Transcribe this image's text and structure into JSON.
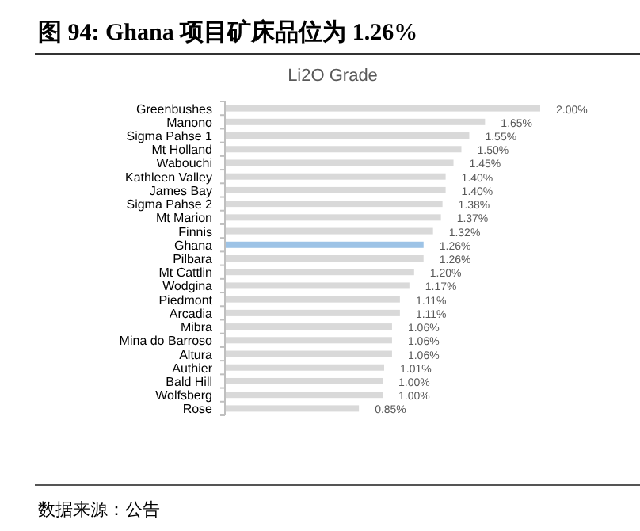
{
  "chart_data": {
    "type": "bar",
    "orientation": "horizontal",
    "title": "图 94: Ghana 项目矿床品位为 1.26%",
    "subtitle": "Li2O Grade",
    "categories": [
      "Greenbushes",
      "Manono",
      "Sigma Pahse 1",
      "Mt Holland",
      "Wabouchi",
      "Kathleen Valley",
      "James Bay",
      "Sigma Pahse 2",
      "Mt Marion",
      "Finnis",
      "Ghana",
      "Pilbara",
      "Mt Cattlin",
      "Wodgina",
      "Piedmont",
      "Arcadia",
      "Mibra",
      "Mina do Barroso",
      "Altura",
      "Authier",
      "Bald Hill",
      "Wolfsberg",
      "Rose"
    ],
    "values": [
      2.0,
      1.65,
      1.55,
      1.5,
      1.45,
      1.4,
      1.4,
      1.38,
      1.37,
      1.32,
      1.26,
      1.26,
      1.2,
      1.17,
      1.11,
      1.11,
      1.06,
      1.06,
      1.06,
      1.01,
      1.0,
      1.0,
      0.85
    ],
    "value_labels": [
      "2.00%",
      "1.65%",
      "1.55%",
      "1.50%",
      "1.45%",
      "1.40%",
      "1.40%",
      "1.38%",
      "1.37%",
      "1.32%",
      "1.26%",
      "1.26%",
      "1.20%",
      "1.17%",
      "1.11%",
      "1.11%",
      "1.06%",
      "1.06%",
      "1.06%",
      "1.01%",
      "1.00%",
      "1.00%",
      "0.85%"
    ],
    "colors": [
      "#d9d9d9",
      "#d9d9d9",
      "#d9d9d9",
      "#d9d9d9",
      "#d9d9d9",
      "#d9d9d9",
      "#d9d9d9",
      "#d9d9d9",
      "#d9d9d9",
      "#d9d9d9",
      "#9dc3e6",
      "#d9d9d9",
      "#d9d9d9",
      "#d9d9d9",
      "#d9d9d9",
      "#d9d9d9",
      "#d9d9d9",
      "#d9d9d9",
      "#d9d9d9",
      "#d9d9d9",
      "#d9d9d9",
      "#d9d9d9",
      "#d9d9d9"
    ],
    "annotations": [
      "数据来源：公告"
    ]
  }
}
